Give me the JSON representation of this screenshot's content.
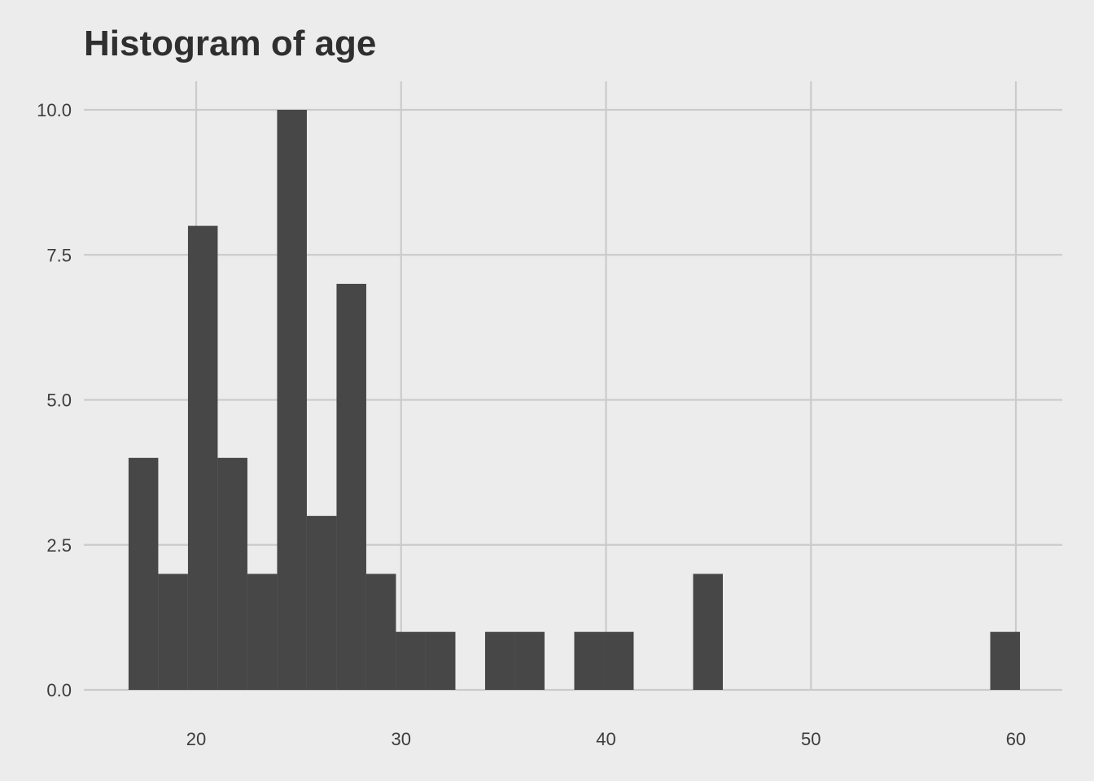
{
  "chart_data": {
    "type": "bar",
    "title": "Histogram of age",
    "xlabel": "",
    "ylabel": "",
    "xlim": [
      14.5,
      62.3
    ],
    "ylim": [
      0,
      10.5
    ],
    "x_ticks": [
      20,
      30,
      40,
      50,
      60
    ],
    "x_tick_labels": [
      "20",
      "30",
      "40",
      "50",
      "60"
    ],
    "y_ticks": [
      0,
      2.5,
      5,
      7.5,
      10
    ],
    "y_tick_labels": [
      "0.0",
      "2.5",
      "5.0",
      "7.5",
      "10.0"
    ],
    "grid": true,
    "bin_width": 1.45,
    "bins": [
      {
        "start": 16.7,
        "end": 18.15,
        "count": 4
      },
      {
        "start": 18.15,
        "end": 19.6,
        "count": 2
      },
      {
        "start": 19.6,
        "end": 21.05,
        "count": 8
      },
      {
        "start": 21.05,
        "end": 22.5,
        "count": 4
      },
      {
        "start": 22.5,
        "end": 23.95,
        "count": 2
      },
      {
        "start": 23.95,
        "end": 25.4,
        "count": 10
      },
      {
        "start": 25.4,
        "end": 26.85,
        "count": 3
      },
      {
        "start": 26.85,
        "end": 28.3,
        "count": 7
      },
      {
        "start": 28.3,
        "end": 29.75,
        "count": 2
      },
      {
        "start": 29.75,
        "end": 31.2,
        "count": 1
      },
      {
        "start": 31.2,
        "end": 32.65,
        "count": 1
      },
      {
        "start": 32.65,
        "end": 34.1,
        "count": 0
      },
      {
        "start": 34.1,
        "end": 35.55,
        "count": 1
      },
      {
        "start": 35.55,
        "end": 37.0,
        "count": 1
      },
      {
        "start": 37.0,
        "end": 38.45,
        "count": 0
      },
      {
        "start": 38.45,
        "end": 39.9,
        "count": 1
      },
      {
        "start": 39.9,
        "end": 41.35,
        "count": 1
      },
      {
        "start": 41.35,
        "end": 42.8,
        "count": 0
      },
      {
        "start": 42.8,
        "end": 44.25,
        "count": 0
      },
      {
        "start": 44.25,
        "end": 45.7,
        "count": 2
      },
      {
        "start": 45.7,
        "end": 47.15,
        "count": 0
      },
      {
        "start": 47.15,
        "end": 48.6,
        "count": 0
      },
      {
        "start": 48.6,
        "end": 50.05,
        "count": 0
      },
      {
        "start": 50.05,
        "end": 51.5,
        "count": 0
      },
      {
        "start": 51.5,
        "end": 52.95,
        "count": 0
      },
      {
        "start": 52.95,
        "end": 54.4,
        "count": 0
      },
      {
        "start": 54.4,
        "end": 55.85,
        "count": 0
      },
      {
        "start": 55.85,
        "end": 57.3,
        "count": 0
      },
      {
        "start": 57.3,
        "end": 58.75,
        "count": 0
      },
      {
        "start": 58.75,
        "end": 60.2,
        "count": 1
      }
    ]
  },
  "colors": {
    "background": "#ececec",
    "bar_fill": "#474747",
    "grid": "#cbcbcb",
    "title": "#2f2f2f",
    "tick_text": "#3c3c3c"
  }
}
